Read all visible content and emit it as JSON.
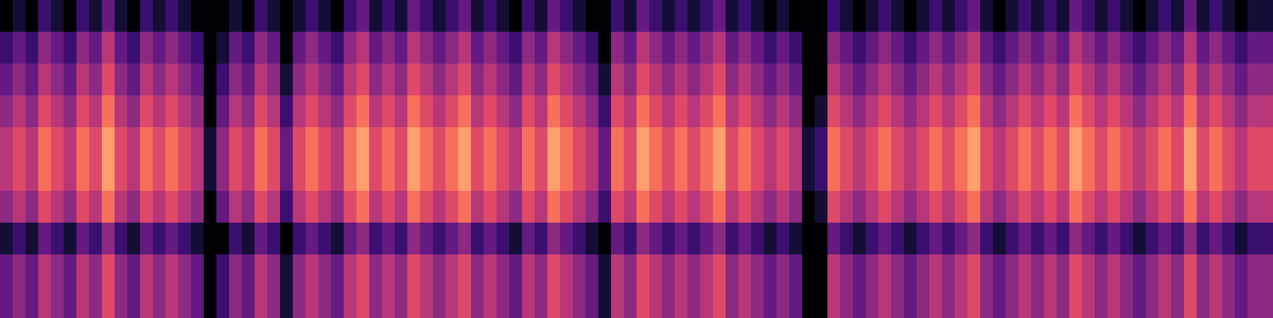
{
  "chart_data": {
    "type": "heatmap",
    "color": "magma",
    "zlim": [
      0,
      10
    ],
    "tick_labels": false,
    "cells": [
      [
        0,
        1,
        0,
        2,
        1,
        0,
        2,
        1,
        3,
        1,
        0,
        2,
        1,
        2,
        1,
        0,
        0,
        0,
        1,
        0,
        2,
        1,
        0,
        1,
        2,
        1,
        0,
        2,
        3,
        1,
        2,
        1,
        3,
        2,
        1,
        2,
        3,
        1,
        2,
        1,
        0,
        2,
        1,
        3,
        2,
        1,
        0,
        0,
        2,
        1,
        3,
        2,
        1,
        2,
        1,
        2,
        3,
        1,
        2,
        1,
        0,
        1,
        0,
        0,
        0,
        2,
        1,
        0,
        1,
        2,
        1,
        0,
        1,
        2,
        1,
        2,
        3,
        1,
        0,
        1,
        2,
        1,
        2,
        1,
        3,
        2,
        1,
        2,
        1,
        0,
        1,
        2,
        1,
        3,
        1,
        2,
        1,
        0,
        1,
        1
      ],
      [
        2,
        3,
        2,
        4,
        3,
        2,
        4,
        3,
        5,
        3,
        2,
        4,
        3,
        4,
        3,
        2,
        0,
        1,
        3,
        2,
        4,
        3,
        0,
        3,
        4,
        3,
        2,
        4,
        5,
        3,
        4,
        3,
        5,
        4,
        3,
        4,
        5,
        3,
        4,
        3,
        2,
        4,
        3,
        5,
        4,
        3,
        2,
        0,
        4,
        3,
        5,
        4,
        3,
        4,
        3,
        4,
        5,
        3,
        4,
        3,
        2,
        3,
        2,
        0,
        0,
        4,
        3,
        2,
        3,
        4,
        3,
        2,
        3,
        4,
        3,
        4,
        5,
        3,
        2,
        3,
        4,
        3,
        4,
        3,
        5,
        4,
        3,
        4,
        3,
        2,
        3,
        4,
        3,
        5,
        3,
        4,
        3,
        2,
        3,
        3
      ],
      [
        3,
        4,
        3,
        5,
        4,
        3,
        5,
        4,
        6,
        4,
        3,
        5,
        4,
        5,
        4,
        3,
        0,
        2,
        4,
        3,
        5,
        4,
        1,
        4,
        5,
        4,
        3,
        5,
        6,
        4,
        5,
        4,
        6,
        5,
        4,
        5,
        6,
        4,
        5,
        4,
        3,
        5,
        4,
        6,
        5,
        4,
        3,
        1,
        5,
        4,
        6,
        5,
        4,
        5,
        4,
        5,
        6,
        4,
        5,
        4,
        3,
        4,
        3,
        0,
        0,
        5,
        4,
        3,
        4,
        5,
        4,
        3,
        4,
        5,
        4,
        5,
        6,
        4,
        3,
        4,
        5,
        4,
        5,
        4,
        6,
        5,
        4,
        5,
        4,
        3,
        4,
        5,
        4,
        6,
        4,
        5,
        4,
        3,
        4,
        4
      ],
      [
        4,
        5,
        4,
        6,
        5,
        4,
        6,
        5,
        7,
        5,
        4,
        6,
        5,
        6,
        5,
        4,
        0,
        3,
        5,
        4,
        6,
        5,
        2,
        5,
        6,
        5,
        4,
        6,
        7,
        5,
        6,
        5,
        7,
        6,
        5,
        6,
        7,
        5,
        6,
        5,
        4,
        6,
        5,
        7,
        6,
        5,
        4,
        2,
        6,
        5,
        7,
        6,
        5,
        6,
        5,
        6,
        7,
        5,
        6,
        5,
        4,
        5,
        4,
        0,
        1,
        6,
        5,
        4,
        5,
        6,
        5,
        4,
        5,
        6,
        5,
        6,
        7,
        5,
        4,
        5,
        6,
        5,
        6,
        5,
        7,
        6,
        5,
        6,
        5,
        4,
        5,
        6,
        5,
        7,
        5,
        6,
        5,
        4,
        5,
        5
      ],
      [
        5,
        6,
        5,
        7,
        6,
        5,
        7,
        6,
        8,
        6,
        5,
        7,
        6,
        7,
        6,
        5,
        1,
        4,
        6,
        5,
        7,
        6,
        3,
        6,
        7,
        6,
        5,
        7,
        8,
        6,
        7,
        6,
        8,
        7,
        6,
        7,
        8,
        6,
        7,
        6,
        5,
        7,
        6,
        8,
        7,
        6,
        5,
        3,
        7,
        6,
        8,
        7,
        6,
        7,
        6,
        7,
        8,
        6,
        7,
        6,
        5,
        6,
        5,
        1,
        2,
        7,
        6,
        5,
        6,
        7,
        6,
        5,
        6,
        7,
        6,
        7,
        8,
        6,
        5,
        6,
        7,
        6,
        7,
        6,
        8,
        7,
        6,
        7,
        6,
        5,
        6,
        7,
        6,
        8,
        6,
        7,
        6,
        5,
        6,
        6
      ],
      [
        5,
        6,
        5,
        7,
        6,
        5,
        7,
        6,
        8,
        6,
        5,
        7,
        6,
        7,
        6,
        5,
        1,
        4,
        6,
        5,
        7,
        6,
        3,
        6,
        7,
        6,
        5,
        7,
        8,
        6,
        7,
        6,
        8,
        7,
        6,
        7,
        8,
        6,
        7,
        6,
        5,
        7,
        6,
        8,
        7,
        6,
        5,
        3,
        7,
        6,
        8,
        7,
        6,
        7,
        6,
        7,
        8,
        6,
        7,
        6,
        5,
        6,
        5,
        1,
        2,
        7,
        6,
        5,
        6,
        7,
        6,
        5,
        6,
        7,
        6,
        7,
        8,
        6,
        5,
        6,
        7,
        6,
        7,
        6,
        8,
        7,
        6,
        7,
        6,
        5,
        6,
        7,
        6,
        8,
        6,
        7,
        6,
        5,
        6,
        6
      ],
      [
        4,
        5,
        4,
        6,
        5,
        4,
        6,
        5,
        7,
        5,
        4,
        6,
        5,
        6,
        5,
        4,
        0,
        3,
        5,
        4,
        6,
        5,
        2,
        5,
        6,
        5,
        4,
        6,
        7,
        5,
        6,
        5,
        7,
        6,
        5,
        6,
        7,
        5,
        6,
        5,
        4,
        6,
        5,
        7,
        6,
        5,
        4,
        2,
        6,
        5,
        7,
        6,
        5,
        6,
        5,
        6,
        7,
        5,
        6,
        5,
        4,
        5,
        4,
        0,
        1,
        6,
        5,
        4,
        5,
        6,
        5,
        4,
        5,
        6,
        5,
        6,
        7,
        5,
        4,
        5,
        6,
        5,
        6,
        5,
        7,
        6,
        5,
        6,
        5,
        4,
        5,
        6,
        5,
        7,
        5,
        6,
        5,
        4,
        5,
        5
      ],
      [
        1,
        2,
        1,
        3,
        2,
        1,
        3,
        2,
        4,
        2,
        1,
        3,
        2,
        3,
        2,
        1,
        0,
        0,
        2,
        1,
        3,
        2,
        0,
        2,
        3,
        2,
        1,
        3,
        4,
        2,
        3,
        2,
        4,
        3,
        2,
        3,
        4,
        2,
        3,
        2,
        1,
        3,
        2,
        4,
        3,
        2,
        1,
        0,
        3,
        2,
        4,
        3,
        2,
        3,
        2,
        3,
        4,
        2,
        3,
        2,
        1,
        2,
        1,
        0,
        0,
        3,
        2,
        1,
        2,
        3,
        2,
        1,
        2,
        3,
        2,
        3,
        4,
        2,
        1,
        2,
        3,
        2,
        3,
        2,
        4,
        3,
        2,
        3,
        2,
        1,
        2,
        3,
        2,
        4,
        2,
        3,
        2,
        1,
        2,
        2
      ],
      [
        3,
        4,
        3,
        5,
        4,
        3,
        5,
        4,
        6,
        4,
        3,
        5,
        4,
        5,
        4,
        3,
        0,
        2,
        4,
        3,
        5,
        4,
        1,
        4,
        5,
        4,
        3,
        5,
        6,
        4,
        5,
        4,
        6,
        5,
        4,
        5,
        6,
        4,
        5,
        4,
        3,
        5,
        4,
        6,
        5,
        4,
        3,
        1,
        5,
        4,
        6,
        5,
        4,
        5,
        4,
        5,
        6,
        4,
        5,
        4,
        3,
        4,
        3,
        0,
        0,
        5,
        4,
        3,
        4,
        5,
        4,
        3,
        4,
        5,
        4,
        5,
        6,
        4,
        3,
        4,
        5,
        4,
        5,
        4,
        6,
        5,
        4,
        5,
        4,
        3,
        4,
        5,
        4,
        6,
        4,
        5,
        4,
        3,
        4,
        4
      ],
      [
        3,
        4,
        3,
        5,
        4,
        3,
        5,
        4,
        6,
        4,
        3,
        5,
        4,
        5,
        4,
        3,
        0,
        2,
        4,
        3,
        5,
        4,
        1,
        4,
        5,
        4,
        3,
        5,
        6,
        4,
        5,
        4,
        6,
        5,
        4,
        5,
        6,
        4,
        5,
        4,
        3,
        5,
        4,
        6,
        5,
        4,
        3,
        1,
        5,
        4,
        6,
        5,
        4,
        5,
        4,
        5,
        6,
        4,
        5,
        4,
        3,
        4,
        3,
        0,
        0,
        5,
        4,
        3,
        4,
        5,
        4,
        3,
        4,
        5,
        4,
        5,
        6,
        4,
        3,
        4,
        5,
        4,
        5,
        4,
        6,
        5,
        4,
        5,
        4,
        3,
        4,
        5,
        4,
        6,
        4,
        5,
        4,
        3,
        4,
        4
      ]
    ]
  }
}
